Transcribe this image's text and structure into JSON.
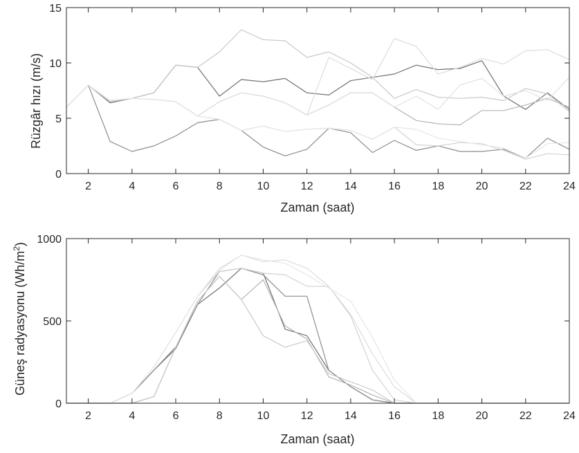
{
  "chart_data": [
    {
      "type": "line",
      "xlabel": "Zaman (saat)",
      "ylabel": "Rüzgâr hızı (m/s)",
      "xlim": [
        1,
        24
      ],
      "ylim": [
        0,
        15
      ],
      "xticks": [
        "2",
        "4",
        "6",
        "8",
        "10",
        "12",
        "14",
        "16",
        "18",
        "20",
        "22",
        "24"
      ],
      "yticks": [
        "0",
        "5",
        "10",
        "15"
      ],
      "x": [
        1,
        2,
        3,
        4,
        5,
        6,
        7,
        8,
        9,
        10,
        11,
        12,
        13,
        14,
        15,
        16,
        17,
        18,
        19,
        20,
        21,
        22,
        23,
        24
      ],
      "series": [
        {
          "color": "#6e6e6e",
          "values": [
            6,
            8,
            6.4,
            6.8,
            7.3,
            9.8,
            9.6,
            7,
            8.5,
            8.3,
            8.6,
            7.3,
            7.1,
            8.4,
            8.7,
            9,
            9.8,
            9.4,
            9.5,
            10.2,
            7,
            5.8,
            7.3,
            5.8
          ]
        },
        {
          "color": "#8c8c8c",
          "values": [
            6,
            8,
            2.9,
            2,
            2.5,
            3.4,
            4.6,
            4.9,
            3.9,
            2.4,
            1.6,
            2.2,
            4.1,
            3.7,
            1.9,
            3,
            2.1,
            2.5,
            2,
            2,
            2.2,
            1.4,
            3.2,
            2.2
          ]
        },
        {
          "color": "#b4b4b4",
          "values": [
            6,
            8,
            6.6,
            6.8,
            6.7,
            6.5,
            5.2,
            6.5,
            7.3,
            7,
            6.4,
            5.3,
            6.2,
            7.3,
            7.3,
            6,
            4.8,
            4.5,
            4.4,
            5.7,
            5.7,
            6.2,
            6.8,
            6
          ]
        },
        {
          "color": "#c8c8c8",
          "values": [
            6,
            8,
            6.5,
            6.8,
            7.3,
            9.8,
            9.6,
            11,
            13,
            12.1,
            12,
            10.5,
            11,
            10,
            8.7,
            6.8,
            7.6,
            6.9,
            6.8,
            6.9,
            6.6,
            7.7,
            7.2,
            5.6
          ]
        },
        {
          "color": "#d2d2d2",
          "values": [
            6,
            8,
            6.6,
            6.8,
            6.7,
            6.5,
            5.2,
            4.9,
            3.9,
            4.3,
            3.8,
            4,
            4.1,
            3.9,
            3.1,
            4.2,
            2.6,
            2.5,
            2.8,
            2.7,
            2.1,
            1.3,
            1.8,
            1.7
          ]
        },
        {
          "color": "#dcdcdc",
          "values": [
            6,
            8,
            6.6,
            6.8,
            6.7,
            6.5,
            5.2,
            6.5,
            7.3,
            7,
            6.4,
            5.3,
            10.5,
            9.5,
            8.5,
            12.2,
            11.5,
            9,
            9.6,
            10.4,
            9.9,
            11.1,
            11.2,
            10.3
          ]
        },
        {
          "color": "#e1e1e1",
          "values": [
            6,
            8,
            6.6,
            6.8,
            6.7,
            6.5,
            5.2,
            6.5,
            7.3,
            7,
            6.4,
            5.3,
            6.2,
            7.3,
            7.3,
            6,
            7,
            5.8,
            8,
            8.6,
            7,
            7.5,
            6.6,
            8.7
          ]
        },
        {
          "color": "#e6e6e6",
          "values": [
            6,
            8,
            6.6,
            6.8,
            6.7,
            6.5,
            5.2,
            4.9,
            3.9,
            4.3,
            3.8,
            4,
            4.1,
            3.9,
            3.1,
            4.2,
            4,
            3.2,
            2.9,
            2.6,
            2.3,
            1.4,
            2.7,
            2.8
          ]
        }
      ]
    },
    {
      "type": "line",
      "xlabel": "Zaman (saat)",
      "ylabel": "Güneş radyasyonu (Wh/m²)",
      "ylabel_main": "Güneş radyasyonu (Wh/m",
      "ylabel_sup": "2",
      "ylabel_tail": ")",
      "xlim": [
        1,
        24
      ],
      "ylim": [
        0,
        1000
      ],
      "xticks": [
        "2",
        "4",
        "6",
        "8",
        "10",
        "12",
        "14",
        "16",
        "18",
        "20",
        "22",
        "24"
      ],
      "yticks": [
        "0",
        "500",
        "1000"
      ],
      "x": [
        1,
        2,
        3,
        4,
        5,
        6,
        7,
        8,
        9,
        10,
        11,
        12,
        13,
        14,
        15,
        16,
        17,
        18,
        19,
        20,
        21,
        22,
        23,
        24
      ],
      "series": [
        {
          "color": "#6e6e6e",
          "values": [
            0,
            0,
            0,
            60,
            200,
            340,
            600,
            700,
            820,
            790,
            450,
            410,
            200,
            100,
            20,
            0,
            0,
            0,
            0,
            0,
            0,
            0,
            0,
            0
          ]
        },
        {
          "color": "#8c8c8c",
          "values": [
            0,
            0,
            0,
            60,
            200,
            330,
            600,
            800,
            820,
            780,
            650,
            650,
            200,
            100,
            20,
            0,
            0,
            0,
            0,
            0,
            0,
            0,
            0,
            0
          ]
        },
        {
          "color": "#b4b4b4",
          "values": [
            0,
            0,
            0,
            0,
            40,
            340,
            620,
            770,
            630,
            750,
            470,
            390,
            160,
            110,
            50,
            0,
            0,
            0,
            0,
            0,
            0,
            0,
            0,
            0
          ]
        },
        {
          "color": "#c8c8c8",
          "values": [
            0,
            0,
            0,
            0,
            40,
            340,
            620,
            770,
            630,
            410,
            340,
            380,
            180,
            130,
            80,
            0,
            0,
            0,
            0,
            0,
            0,
            0,
            0,
            0
          ]
        },
        {
          "color": "#d2d2d2",
          "values": [
            0,
            0,
            0,
            60,
            220,
            430,
            650,
            800,
            820,
            790,
            780,
            710,
            710,
            530,
            200,
            20,
            0,
            0,
            0,
            0,
            0,
            0,
            0,
            0
          ]
        },
        {
          "color": "#dcdcdc",
          "values": [
            0,
            0,
            0,
            60,
            220,
            430,
            650,
            810,
            900,
            860,
            870,
            820,
            710,
            540,
            300,
            100,
            0,
            0,
            0,
            0,
            0,
            0,
            0,
            0
          ]
        },
        {
          "color": "#e6e6e6",
          "values": [
            0,
            0,
            0,
            60,
            220,
            430,
            650,
            820,
            900,
            870,
            850,
            780,
            700,
            620,
            400,
            140,
            0,
            0,
            0,
            0,
            0,
            0,
            0,
            0
          ]
        }
      ]
    }
  ]
}
